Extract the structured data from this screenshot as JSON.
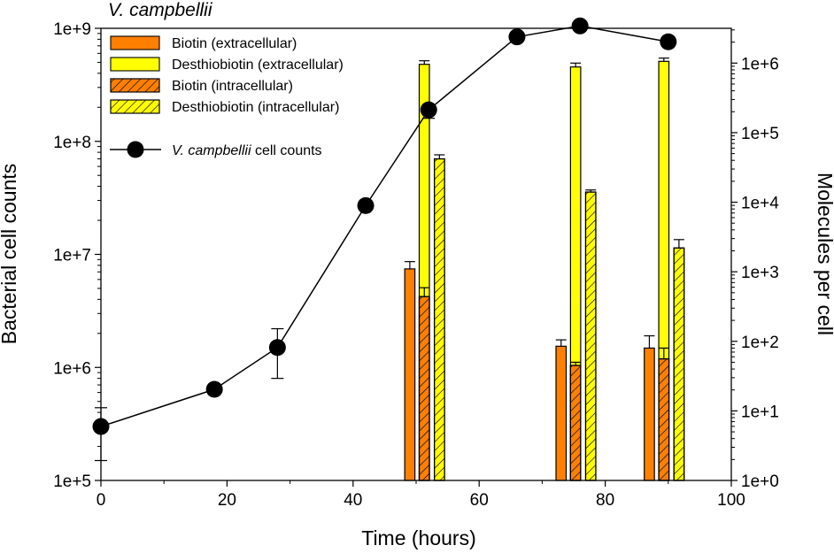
{
  "chart_data": {
    "type": "bar",
    "title": "V. campbellii",
    "xlabel": "Time (hours)",
    "ylabel": "Bacterial cell counts",
    "y2label": "Molecules per cell",
    "xlim": [
      0,
      100
    ],
    "x_ticks": [
      0,
      20,
      40,
      60,
      80,
      100
    ],
    "x_tick_labels": [
      "0",
      "20",
      "40",
      "60",
      "80",
      "100"
    ],
    "ylim_log10": [
      5,
      9
    ],
    "y_tick_labels": [
      "1e+5",
      "1e+6",
      "1e+7",
      "1e+8",
      "1e+9"
    ],
    "y2lim_log10": [
      0,
      6.5
    ],
    "y2_tick_labels": [
      "1e+0",
      "1e+1",
      "1e+2",
      "1e+3",
      "1e+4",
      "1e+5",
      "1e+6"
    ],
    "legend_position": "top-left",
    "line_series": {
      "name_italic": "V. campbellii",
      "name_suffix": " cell counts",
      "x": [
        0,
        18,
        28,
        42,
        52,
        66,
        76,
        90
      ],
      "y": [
        300000,
        640000,
        1500000,
        27000000,
        190000000,
        840000000,
        1050000000,
        760000000
      ],
      "err_low": [
        150000,
        null,
        800000,
        null,
        null,
        null,
        null,
        null
      ],
      "err_high": [
        440000,
        null,
        2200000,
        null,
        160000000,
        null,
        null,
        null
      ]
    },
    "bar_series": [
      {
        "name": "Biotin (extracellular)",
        "color": "#FF7F00",
        "hatch": false,
        "x": [
          49,
          73,
          87
        ],
        "values": [
          1100,
          85,
          80
        ],
        "err_high": [
          1400,
          105,
          120
        ]
      },
      {
        "name": "Desthiobiotin (extracellular)",
        "color": "#FFFF00",
        "hatch": false,
        "x": [
          51.3,
          75.3,
          89.3
        ],
        "values": [
          960000,
          880000,
          1060000
        ],
        "err_high": [
          1080000,
          1000000,
          1180000
        ]
      },
      {
        "name": "Biotin (intracellular)",
        "color": "#FF7F00",
        "hatch": true,
        "x": [
          51.3,
          75.3,
          89.3
        ],
        "values": [
          440,
          45,
          56
        ],
        "err_high": [
          590,
          50,
          80
        ]
      },
      {
        "name": "Desthiobiotin (intracellular)",
        "color": "#FFFF00",
        "hatch": true,
        "x": [
          53.7,
          77.7,
          91.7
        ],
        "values": [
          42000,
          14000,
          2200
        ],
        "err_high": [
          48000,
          15000,
          2900
        ]
      }
    ]
  }
}
